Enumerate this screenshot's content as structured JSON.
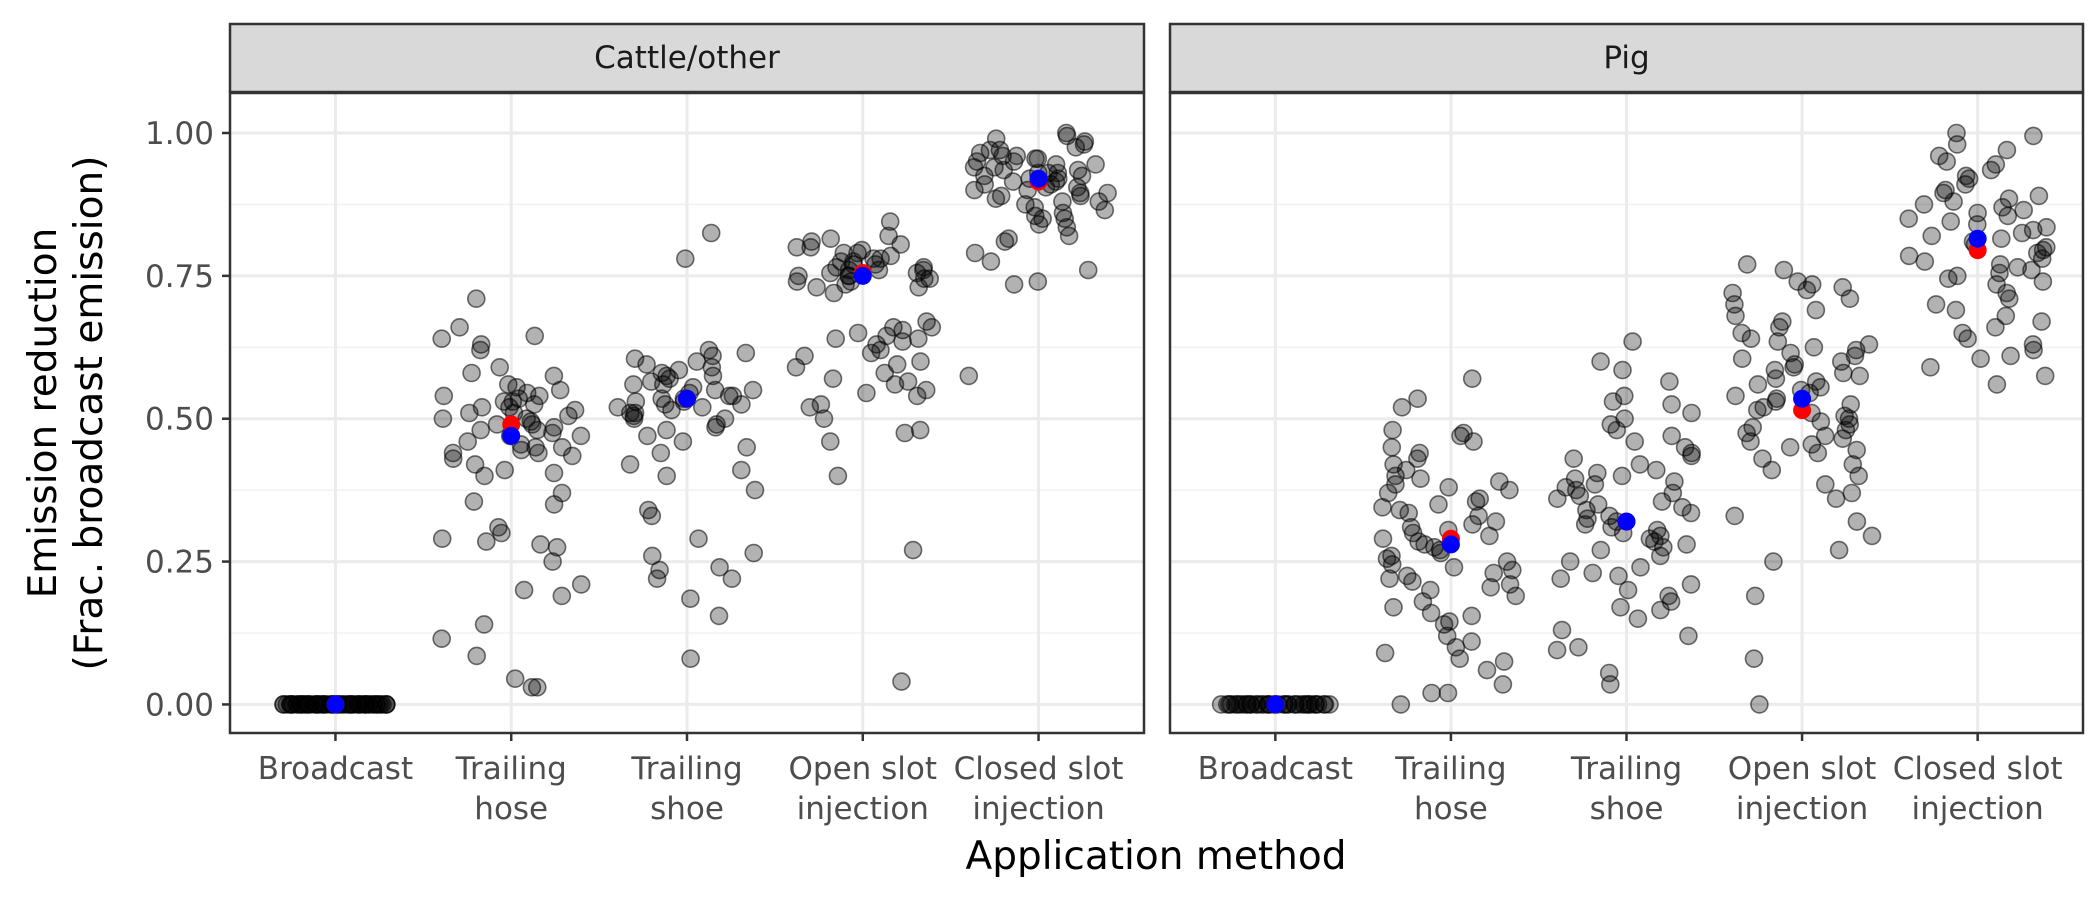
{
  "chart_data": {
    "type": "scatter",
    "facets": [
      "Cattle/other",
      "Pig"
    ],
    "categories": [
      [
        "Broadcast"
      ],
      [
        "Trailing",
        "hose"
      ],
      [
        "Trailing",
        "shoe"
      ],
      [
        "Open slot",
        "injection"
      ],
      [
        "Closed slot",
        "injection"
      ]
    ],
    "xlabel": "Application method",
    "ylabel": [
      "Emission reduction",
      "(Frac. broadcast emission)"
    ],
    "ylim": [
      -0.05,
      1.07
    ],
    "y_ticks": [
      0,
      0.25,
      0.5,
      0.75,
      1
    ],
    "y_tick_labels": [
      "0.00",
      "0.25",
      "0.50",
      "0.75",
      "1.00"
    ],
    "grid": true,
    "colors": {
      "points": "#000000",
      "mean_marker": "#ff0000",
      "median_marker": "#0000ff"
    },
    "summary": {
      "Cattle/other": {
        "red": [
          0,
          0.49,
          0.535,
          0.755,
          0.915
        ],
        "blue": [
          0,
          0.47,
          0.535,
          0.75,
          0.92
        ]
      },
      "Pig": {
        "red": [
          0,
          0.29,
          0.32,
          0.515,
          0.795
        ],
        "blue": [
          0,
          0.28,
          0.32,
          0.535,
          0.815
        ]
      }
    },
    "observations": {
      "Cattle/other": [
        {
          "category": "Broadcast",
          "count": 60,
          "values_all": 0
        },
        {
          "category": "Trailing hose",
          "values": [
            0.71,
            0.66,
            0.645,
            0.64,
            0.63,
            0.62,
            0.59,
            0.58,
            0.575,
            0.56,
            0.555,
            0.55,
            0.545,
            0.54,
            0.54,
            0.535,
            0.53,
            0.53,
            0.525,
            0.52,
            0.52,
            0.515,
            0.51,
            0.51,
            0.505,
            0.5,
            0.5,
            0.495,
            0.49,
            0.49,
            0.485,
            0.48,
            0.48,
            0.475,
            0.47,
            0.47,
            0.46,
            0.455,
            0.45,
            0.45,
            0.445,
            0.44,
            0.44,
            0.435,
            0.43,
            0.42,
            0.41,
            0.405,
            0.4,
            0.37,
            0.355,
            0.35,
            0.31,
            0.3,
            0.29,
            0.285,
            0.28,
            0.275,
            0.25,
            0.21,
            0.2,
            0.19,
            0.14,
            0.115,
            0.085,
            0.045,
            0.03,
            0.03
          ]
        },
        {
          "category": "Trailing shoe",
          "values": [
            0.825,
            0.78,
            0.62,
            0.615,
            0.61,
            0.605,
            0.6,
            0.595,
            0.59,
            0.585,
            0.58,
            0.575,
            0.575,
            0.57,
            0.565,
            0.56,
            0.56,
            0.555,
            0.55,
            0.55,
            0.545,
            0.54,
            0.54,
            0.535,
            0.535,
            0.53,
            0.53,
            0.525,
            0.525,
            0.52,
            0.52,
            0.515,
            0.51,
            0.51,
            0.505,
            0.5,
            0.5,
            0.49,
            0.485,
            0.48,
            0.47,
            0.46,
            0.45,
            0.44,
            0.42,
            0.41,
            0.4,
            0.375,
            0.34,
            0.33,
            0.29,
            0.265,
            0.26,
            0.24,
            0.235,
            0.22,
            0.22,
            0.185,
            0.155,
            0.08
          ]
        },
        {
          "category": "Open slot injection",
          "values": [
            0.845,
            0.82,
            0.815,
            0.81,
            0.805,
            0.8,
            0.8,
            0.795,
            0.79,
            0.79,
            0.785,
            0.78,
            0.78,
            0.775,
            0.775,
            0.77,
            0.77,
            0.765,
            0.765,
            0.76,
            0.76,
            0.76,
            0.755,
            0.755,
            0.75,
            0.75,
            0.75,
            0.745,
            0.745,
            0.74,
            0.74,
            0.735,
            0.73,
            0.73,
            0.72,
            0.67,
            0.66,
            0.66,
            0.655,
            0.65,
            0.645,
            0.64,
            0.64,
            0.635,
            0.63,
            0.62,
            0.615,
            0.61,
            0.6,
            0.595,
            0.59,
            0.58,
            0.57,
            0.565,
            0.56,
            0.55,
            0.545,
            0.54,
            0.525,
            0.52,
            0.5,
            0.48,
            0.475,
            0.46,
            0.4,
            0.27,
            0.04
          ]
        },
        {
          "category": "Closed slot injection",
          "values": [
            1.0,
            0.995,
            0.99,
            0.985,
            0.98,
            0.975,
            0.97,
            0.97,
            0.965,
            0.96,
            0.96,
            0.955,
            0.955,
            0.95,
            0.95,
            0.945,
            0.945,
            0.94,
            0.94,
            0.935,
            0.935,
            0.93,
            0.93,
            0.93,
            0.925,
            0.925,
            0.92,
            0.92,
            0.915,
            0.915,
            0.91,
            0.91,
            0.905,
            0.905,
            0.9,
            0.9,
            0.895,
            0.895,
            0.89,
            0.89,
            0.885,
            0.88,
            0.88,
            0.875,
            0.87,
            0.865,
            0.86,
            0.855,
            0.85,
            0.85,
            0.84,
            0.835,
            0.82,
            0.815,
            0.81,
            0.79,
            0.775,
            0.76,
            0.74,
            0.735,
            0.575
          ]
        }
      ],
      "Pig": [
        {
          "category": "Broadcast",
          "count": 40,
          "values_all": 0
        },
        {
          "category": "Trailing hose",
          "values": [
            0.57,
            0.535,
            0.52,
            0.48,
            0.475,
            0.47,
            0.46,
            0.45,
            0.44,
            0.43,
            0.42,
            0.41,
            0.4,
            0.395,
            0.39,
            0.385,
            0.38,
            0.375,
            0.37,
            0.36,
            0.355,
            0.35,
            0.345,
            0.34,
            0.335,
            0.33,
            0.32,
            0.315,
            0.31,
            0.305,
            0.3,
            0.295,
            0.29,
            0.285,
            0.28,
            0.275,
            0.27,
            0.265,
            0.26,
            0.255,
            0.25,
            0.245,
            0.24,
            0.235,
            0.23,
            0.225,
            0.22,
            0.215,
            0.21,
            0.205,
            0.2,
            0.19,
            0.18,
            0.17,
            0.16,
            0.155,
            0.145,
            0.14,
            0.12,
            0.11,
            0.1,
            0.09,
            0.08,
            0.075,
            0.06,
            0.035,
            0.02,
            0.02,
            0.0
          ]
        },
        {
          "category": "Trailing shoe",
          "values": [
            0.635,
            0.6,
            0.585,
            0.565,
            0.54,
            0.53,
            0.525,
            0.51,
            0.5,
            0.49,
            0.48,
            0.47,
            0.46,
            0.45,
            0.44,
            0.435,
            0.43,
            0.42,
            0.41,
            0.405,
            0.4,
            0.395,
            0.39,
            0.385,
            0.38,
            0.375,
            0.37,
            0.365,
            0.36,
            0.355,
            0.35,
            0.345,
            0.34,
            0.335,
            0.33,
            0.325,
            0.32,
            0.315,
            0.31,
            0.305,
            0.3,
            0.295,
            0.29,
            0.285,
            0.28,
            0.275,
            0.27,
            0.26,
            0.25,
            0.24,
            0.23,
            0.225,
            0.22,
            0.21,
            0.2,
            0.19,
            0.18,
            0.17,
            0.165,
            0.15,
            0.13,
            0.12,
            0.1,
            0.095,
            0.055,
            0.035
          ]
        },
        {
          "category": "Open slot injection",
          "values": [
            0.77,
            0.76,
            0.74,
            0.735,
            0.73,
            0.725,
            0.72,
            0.71,
            0.7,
            0.69,
            0.68,
            0.67,
            0.66,
            0.65,
            0.64,
            0.635,
            0.63,
            0.625,
            0.62,
            0.615,
            0.61,
            0.605,
            0.6,
            0.595,
            0.59,
            0.585,
            0.58,
            0.575,
            0.57,
            0.565,
            0.56,
            0.555,
            0.55,
            0.545,
            0.54,
            0.535,
            0.53,
            0.525,
            0.52,
            0.515,
            0.51,
            0.505,
            0.5,
            0.495,
            0.49,
            0.485,
            0.48,
            0.475,
            0.47,
            0.465,
            0.46,
            0.455,
            0.45,
            0.445,
            0.44,
            0.43,
            0.42,
            0.41,
            0.4,
            0.385,
            0.37,
            0.36,
            0.33,
            0.32,
            0.295,
            0.27,
            0.25,
            0.19,
            0.08,
            0.0
          ]
        },
        {
          "category": "Closed slot injection",
          "values": [
            1.0,
            0.995,
            0.98,
            0.97,
            0.96,
            0.95,
            0.945,
            0.935,
            0.925,
            0.92,
            0.91,
            0.9,
            0.895,
            0.89,
            0.885,
            0.88,
            0.875,
            0.87,
            0.865,
            0.86,
            0.855,
            0.85,
            0.845,
            0.84,
            0.835,
            0.83,
            0.825,
            0.82,
            0.815,
            0.81,
            0.805,
            0.8,
            0.795,
            0.79,
            0.785,
            0.78,
            0.775,
            0.77,
            0.765,
            0.76,
            0.755,
            0.75,
            0.745,
            0.74,
            0.735,
            0.72,
            0.71,
            0.7,
            0.69,
            0.68,
            0.67,
            0.66,
            0.65,
            0.64,
            0.63,
            0.62,
            0.61,
            0.605,
            0.59,
            0.575,
            0.56
          ]
        }
      ]
    }
  }
}
